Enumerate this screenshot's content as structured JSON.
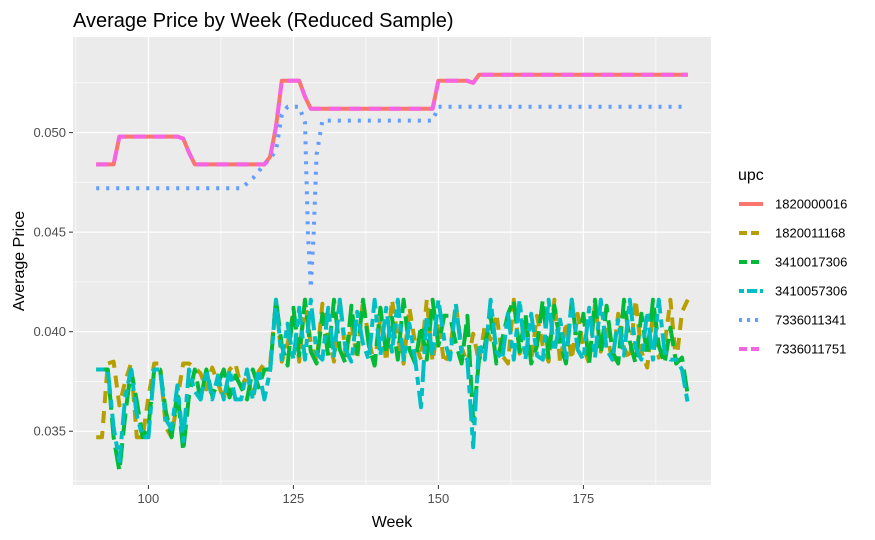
{
  "chart_data": {
    "type": "line",
    "title": "Average Price by Week (Reduced Sample)",
    "xlabel": "Week",
    "ylabel": "Average Price",
    "xlim": [
      87,
      197
    ],
    "ylim": [
      0.0323,
      0.0548
    ],
    "x_ticks": [
      100,
      125,
      150,
      175
    ],
    "x_tick_labels": [
      "100",
      "125",
      "150",
      "175"
    ],
    "y_ticks": [
      0.035,
      0.04,
      0.045,
      0.05
    ],
    "y_tick_labels": [
      "0.035",
      "0.040",
      "0.045",
      "0.050"
    ],
    "grid": true,
    "legend_title": "upc",
    "legend_position": "right",
    "series": [
      {
        "name": "1820000016",
        "color": "#F8766D",
        "linestyle": "solid",
        "x": [
          91,
          93,
          94,
          95,
          100,
          105,
          106,
          107,
          108,
          110,
          115,
          120,
          121,
          122,
          123,
          124,
          125,
          126,
          127,
          128,
          130,
          135,
          140,
          145,
          149,
          150,
          151,
          155,
          156,
          157,
          158,
          160,
          165,
          170,
          175,
          180,
          185,
          190,
          193
        ],
        "y": [
          0.0484,
          0.0484,
          0.0484,
          0.0498,
          0.0498,
          0.0498,
          0.0497,
          0.049,
          0.0484,
          0.0484,
          0.0484,
          0.0484,
          0.0488,
          0.0503,
          0.0526,
          0.0526,
          0.0526,
          0.0526,
          0.0518,
          0.0512,
          0.0512,
          0.0512,
          0.0512,
          0.0512,
          0.0512,
          0.0526,
          0.0526,
          0.0526,
          0.0525,
          0.0529,
          0.0529,
          0.0529,
          0.0529,
          0.0529,
          0.0529,
          0.0529,
          0.0529,
          0.0529,
          0.0529
        ]
      },
      {
        "name": "1820011168",
        "color": "#B79F00",
        "linestyle": "dashed",
        "x": [
          91,
          92,
          93,
          94,
          95,
          96,
          97,
          98,
          99,
          100,
          101,
          102,
          103,
          104,
          105,
          106,
          107,
          108,
          109,
          110,
          111,
          112,
          113,
          114,
          115,
          116,
          117,
          118,
          119,
          120,
          121,
          122,
          123,
          124,
          125,
          126,
          127,
          128,
          129,
          130,
          131,
          132,
          133,
          134,
          135,
          136,
          137,
          138,
          139,
          140,
          141,
          142,
          143,
          144,
          145,
          146,
          147,
          148,
          149,
          150,
          151,
          152,
          153,
          154,
          155,
          156,
          157,
          158,
          159,
          160,
          161,
          162,
          163,
          164,
          165,
          166,
          167,
          168,
          169,
          170,
          171,
          172,
          173,
          174,
          175,
          176,
          177,
          178,
          179,
          180,
          181,
          182,
          183,
          184,
          185,
          186,
          187,
          188,
          189,
          190,
          191,
          192,
          193
        ],
        "y": [
          0.0347,
          0.0347,
          0.0384,
          0.0385,
          0.0363,
          0.0375,
          0.0384,
          0.0347,
          0.0347,
          0.0367,
          0.0384,
          0.0384,
          0.0352,
          0.0347,
          0.0366,
          0.0384,
          0.0384,
          0.0382,
          0.0379,
          0.0371,
          0.0382,
          0.0374,
          0.0366,
          0.0381,
          0.0384,
          0.0372,
          0.0378,
          0.0367,
          0.038,
          0.0384,
          0.0384,
          0.0416,
          0.0385,
          0.0394,
          0.041,
          0.0385,
          0.0416,
          0.0394,
          0.0385,
          0.0414,
          0.0398,
          0.0385,
          0.0416,
          0.0388,
          0.0404,
          0.0386,
          0.0416,
          0.0396,
          0.0383,
          0.0407,
          0.0385,
          0.0416,
          0.0397,
          0.0384,
          0.0412,
          0.0394,
          0.0386,
          0.0416,
          0.0385,
          0.0405,
          0.0384,
          0.039,
          0.0414,
          0.0392,
          0.0384,
          0.0399,
          0.0385,
          0.0403,
          0.0396,
          0.0409,
          0.0388,
          0.0384,
          0.0416,
          0.0389,
          0.04,
          0.0386,
          0.0408,
          0.0393,
          0.0385,
          0.0416,
          0.0384,
          0.0405,
          0.0386,
          0.0409,
          0.0392,
          0.0384,
          0.0414,
          0.039,
          0.0401,
          0.0384,
          0.0409,
          0.0392,
          0.0386,
          0.0416,
          0.039,
          0.0382,
          0.0409,
          0.0387,
          0.0393,
          0.0416,
          0.0384,
          0.041,
          0.0416
        ]
      },
      {
        "name": "3410017306",
        "color": "#00BA38",
        "linestyle": "longdash",
        "x": [
          91,
          92,
          93,
          94,
          95,
          96,
          97,
          98,
          99,
          100,
          101,
          102,
          103,
          104,
          105,
          106,
          107,
          108,
          109,
          110,
          111,
          112,
          113,
          114,
          115,
          116,
          117,
          118,
          119,
          120,
          121,
          122,
          123,
          124,
          125,
          126,
          127,
          128,
          129,
          130,
          131,
          132,
          133,
          134,
          135,
          136,
          137,
          138,
          139,
          140,
          141,
          142,
          143,
          144,
          145,
          146,
          147,
          148,
          149,
          150,
          151,
          152,
          153,
          154,
          155,
          156,
          157,
          158,
          159,
          160,
          161,
          162,
          163,
          164,
          165,
          166,
          167,
          168,
          169,
          170,
          171,
          172,
          173,
          174,
          175,
          176,
          177,
          178,
          179,
          180,
          181,
          182,
          183,
          184,
          185,
          186,
          187,
          188,
          189,
          190,
          191,
          192,
          193
        ],
        "y": [
          0.0381,
          0.0381,
          0.0381,
          0.0347,
          0.033,
          0.0358,
          0.0381,
          0.0365,
          0.0347,
          0.0352,
          0.0381,
          0.0381,
          0.036,
          0.0347,
          0.037,
          0.034,
          0.0368,
          0.0381,
          0.0366,
          0.0381,
          0.0368,
          0.0374,
          0.0381,
          0.0367,
          0.0378,
          0.0372,
          0.0366,
          0.0381,
          0.0372,
          0.0381,
          0.0381,
          0.0416,
          0.0393,
          0.0383,
          0.0412,
          0.0388,
          0.0416,
          0.039,
          0.0384,
          0.0409,
          0.0388,
          0.0416,
          0.0391,
          0.0384,
          0.0413,
          0.0389,
          0.0416,
          0.0393,
          0.0383,
          0.0412,
          0.0389,
          0.0407,
          0.0386,
          0.0416,
          0.0391,
          0.0384,
          0.0403,
          0.0386,
          0.0416,
          0.0393,
          0.0408,
          0.0408,
          0.0394,
          0.0384,
          0.0408,
          0.0355,
          0.0386,
          0.0393,
          0.0408,
          0.0384,
          0.0396,
          0.0409,
          0.0416,
          0.039,
          0.0409,
          0.0384,
          0.0393,
          0.0416,
          0.0387,
          0.0413,
          0.0394,
          0.0384,
          0.0416,
          0.0392,
          0.0409,
          0.0384,
          0.0416,
          0.0389,
          0.0413,
          0.039,
          0.0384,
          0.0416,
          0.0395,
          0.0384,
          0.0409,
          0.0388,
          0.0416,
          0.0393,
          0.0384,
          0.0402,
          0.0384,
          0.0387,
          0.0368
        ]
      },
      {
        "name": "3410057306",
        "color": "#00BFC4",
        "linestyle": "twodash",
        "x": [
          91,
          92,
          93,
          94,
          95,
          96,
          97,
          98,
          99,
          100,
          101,
          102,
          103,
          104,
          105,
          106,
          107,
          108,
          109,
          110,
          111,
          112,
          113,
          114,
          115,
          116,
          117,
          118,
          119,
          120,
          121,
          122,
          123,
          124,
          125,
          126,
          127,
          128,
          129,
          130,
          131,
          132,
          133,
          134,
          135,
          136,
          137,
          138,
          139,
          140,
          141,
          142,
          143,
          144,
          145,
          146,
          147,
          148,
          149,
          150,
          151,
          152,
          153,
          154,
          155,
          156,
          157,
          158,
          159,
          160,
          161,
          162,
          163,
          164,
          165,
          166,
          167,
          168,
          169,
          170,
          171,
          172,
          173,
          174,
          175,
          176,
          177,
          178,
          179,
          180,
          181,
          182,
          183,
          184,
          185,
          186,
          187,
          188,
          189,
          190,
          191,
          192,
          193
        ],
        "y": [
          0.0381,
          0.0381,
          0.0381,
          0.0352,
          0.0335,
          0.0367,
          0.0381,
          0.0358,
          0.0347,
          0.0347,
          0.0381,
          0.0381,
          0.0356,
          0.0351,
          0.0373,
          0.0345,
          0.0381,
          0.037,
          0.0366,
          0.0381,
          0.0366,
          0.0378,
          0.0366,
          0.0381,
          0.0366,
          0.0366,
          0.0381,
          0.0366,
          0.0381,
          0.0366,
          0.0381,
          0.0416,
          0.0386,
          0.0404,
          0.0386,
          0.0412,
          0.0386,
          0.0416,
          0.0389,
          0.0386,
          0.0412,
          0.0388,
          0.0416,
          0.0391,
          0.0385,
          0.041,
          0.0394,
          0.0386,
          0.0416,
          0.0388,
          0.0412,
          0.039,
          0.0416,
          0.0386,
          0.0404,
          0.0386,
          0.0362,
          0.0408,
          0.0388,
          0.0416,
          0.0396,
          0.0386,
          0.0414,
          0.0389,
          0.0386,
          0.0342,
          0.0394,
          0.0386,
          0.0416,
          0.039,
          0.0386,
          0.0409,
          0.0386,
          0.0416,
          0.0386,
          0.0409,
          0.0388,
          0.0386,
          0.0416,
          0.039,
          0.0406,
          0.0386,
          0.0416,
          0.0391,
          0.0386,
          0.0412,
          0.0387,
          0.0416,
          0.0391,
          0.0386,
          0.0406,
          0.0388,
          0.0416,
          0.0392,
          0.0386,
          0.041,
          0.0386,
          0.0416,
          0.039,
          0.0386,
          0.0386,
          0.0381,
          0.0364
        ]
      },
      {
        "name": "7336011341",
        "color": "#619CFF",
        "linestyle": "dotted",
        "x": [
          91,
          100,
          110,
          115,
          116,
          118,
          120,
          121,
          122,
          123,
          124,
          125,
          126,
          127,
          127.5,
          128,
          128.5,
          129,
          130,
          135,
          140,
          145,
          149,
          150,
          155,
          160,
          165,
          170,
          175,
          180,
          185,
          190,
          193
        ],
        "y": [
          0.0472,
          0.0472,
          0.0472,
          0.0472,
          0.0472,
          0.0477,
          0.0484,
          0.0487,
          0.0491,
          0.0509,
          0.0513,
          0.0513,
          0.0513,
          0.0505,
          0.045,
          0.0422,
          0.045,
          0.0489,
          0.0506,
          0.0506,
          0.0506,
          0.0506,
          0.0506,
          0.0513,
          0.0513,
          0.0513,
          0.0513,
          0.0513,
          0.0513,
          0.0513,
          0.0513,
          0.0513,
          0.0513
        ]
      },
      {
        "name": "7336011751",
        "color": "#F564E3",
        "linestyle": "dashed",
        "x": [
          91,
          93,
          94,
          95,
          100,
          105,
          106,
          107,
          108,
          110,
          115,
          120,
          121,
          122,
          123,
          124,
          125,
          126,
          127,
          128,
          130,
          135,
          140,
          145,
          149,
          150,
          151,
          155,
          156,
          157,
          158,
          160,
          165,
          170,
          175,
          180,
          185,
          190,
          193
        ],
        "y": [
          0.0484,
          0.0484,
          0.0484,
          0.0498,
          0.0498,
          0.0498,
          0.0497,
          0.049,
          0.0484,
          0.0484,
          0.0484,
          0.0484,
          0.0488,
          0.0503,
          0.0526,
          0.0526,
          0.0526,
          0.0526,
          0.0518,
          0.0512,
          0.0512,
          0.0512,
          0.0512,
          0.0512,
          0.0512,
          0.0526,
          0.0526,
          0.0526,
          0.0525,
          0.0529,
          0.0529,
          0.0529,
          0.0529,
          0.0529,
          0.0529,
          0.0529,
          0.0529,
          0.0529,
          0.0529
        ]
      }
    ]
  }
}
